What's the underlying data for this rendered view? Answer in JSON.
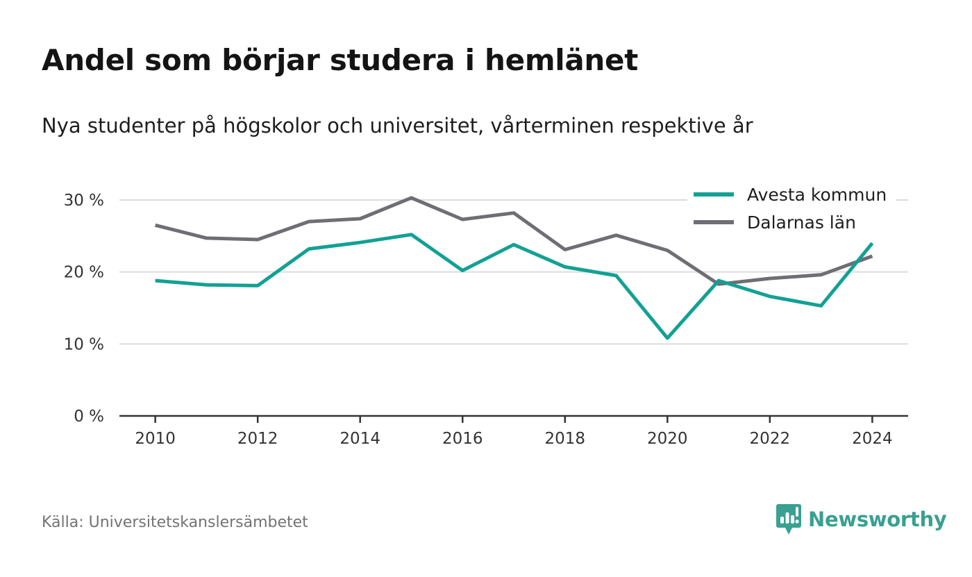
{
  "header": {
    "title": "Andel som börjar studera i hemlänet",
    "subtitle": "Nya studenter på högskolor och universitet, vårterminen respektive år"
  },
  "footer": {
    "source": "Källa: Universitetskanslersämbetet",
    "brand": "Newsworthy"
  },
  "colors": {
    "series_avesta": "#12a194",
    "series_dalarna": "#6f6e74",
    "grid": "#dcdcdc",
    "axis": "#333333",
    "brand": "#3aa091"
  },
  "chart_data": {
    "type": "line",
    "title": "Andel som börjar studera i hemlänet",
    "subtitle": "Nya studenter på högskolor och universitet, vårterminen respektive år",
    "x": [
      2010,
      2011,
      2012,
      2013,
      2014,
      2015,
      2016,
      2017,
      2018,
      2019,
      2020,
      2021,
      2022,
      2023,
      2024
    ],
    "xticks": [
      "2010",
      "2012",
      "2014",
      "2016",
      "2018",
      "2020",
      "2022",
      "2024"
    ],
    "xlim": [
      2009.3,
      2024.7
    ],
    "yticks": [
      "0 %",
      "10 %",
      "20 %",
      "30 %"
    ],
    "ytick_values": [
      0,
      10,
      20,
      30
    ],
    "ylim": [
      0,
      30
    ],
    "grid": true,
    "legend_position": "top-right",
    "series": [
      {
        "name": "Avesta kommun",
        "values": [
          18.8,
          18.2,
          18.1,
          23.2,
          24.1,
          25.2,
          20.2,
          23.8,
          20.7,
          19.5,
          10.8,
          18.8,
          16.6,
          15.3,
          24.0
        ]
      },
      {
        "name": "Dalarnas län",
        "values": [
          26.5,
          24.7,
          24.5,
          27.0,
          27.4,
          30.3,
          27.3,
          28.2,
          23.1,
          25.1,
          23.0,
          18.3,
          19.1,
          19.6,
          22.2
        ]
      }
    ]
  }
}
